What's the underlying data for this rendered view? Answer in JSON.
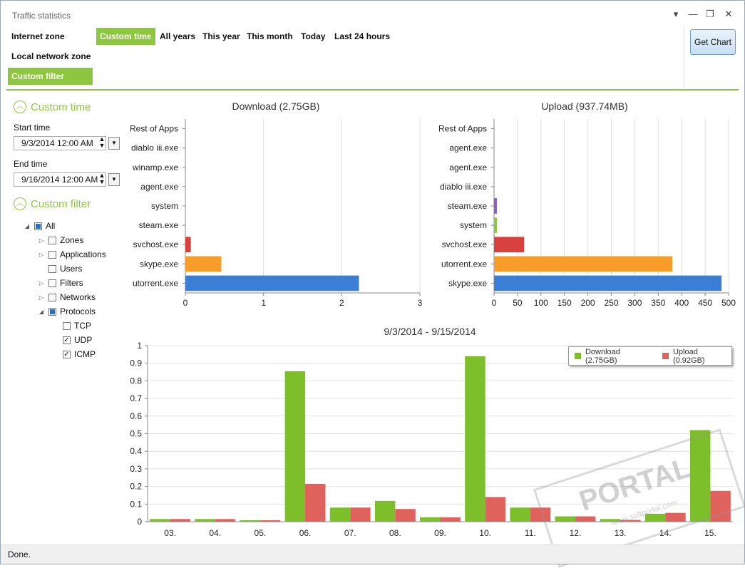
{
  "window": {
    "title": "Traffic statistics"
  },
  "window_buttons": [
    "▾",
    "—",
    "❐",
    "✕"
  ],
  "zones": [
    {
      "label": "Internet zone",
      "active": false
    },
    {
      "label": "Local network zone",
      "active": false
    },
    {
      "label": "Custom filter",
      "active": true
    }
  ],
  "ranges": [
    {
      "label": "Custom time",
      "active": true
    },
    {
      "label": "All years",
      "active": false
    },
    {
      "label": "This year",
      "active": false
    },
    {
      "label": "This month",
      "active": false
    },
    {
      "label": "Today",
      "active": false
    },
    {
      "label": "Last 24 hours",
      "active": false
    }
  ],
  "get_chart_label": "Get Chart",
  "sidebar": {
    "custom_time_heading": "Custom time",
    "start_label": "Start time",
    "start_value": "9/3/2014 12:00 AM",
    "end_label": "End time",
    "end_value": "9/16/2014 12:00 AM",
    "custom_filter_heading": "Custom filter",
    "tree": [
      {
        "label": "All",
        "state": "partial",
        "expander": "◢",
        "level": 0
      },
      {
        "label": "Zones",
        "state": "unchecked",
        "expander": "▷",
        "level": 1
      },
      {
        "label": "Applications",
        "state": "unchecked",
        "expander": "▷",
        "level": 1
      },
      {
        "label": "Users",
        "state": "unchecked",
        "expander": "",
        "level": 1
      },
      {
        "label": "Filters",
        "state": "unchecked",
        "expander": "▷",
        "level": 1
      },
      {
        "label": "Networks",
        "state": "unchecked",
        "expander": "▷",
        "level": 1
      },
      {
        "label": "Protocols",
        "state": "partial",
        "expander": "◢",
        "level": 1
      },
      {
        "label": "TCP",
        "state": "unchecked",
        "expander": "",
        "level": 2
      },
      {
        "label": "UDP",
        "state": "checked",
        "expander": "",
        "level": 2
      },
      {
        "label": "ICMP",
        "state": "checked",
        "expander": "",
        "level": 2
      }
    ]
  },
  "status": "Done.",
  "watermark": {
    "text": "PORTAL",
    "sub": "www.softportal.com",
    "tm": "TM"
  },
  "chart_data": [
    {
      "type": "bar",
      "orientation": "horizontal",
      "title": "Download (2.75GB)",
      "categories": [
        "Rest of Apps",
        "diablo iii.exe",
        "winamp.exe",
        "agent.exe",
        "system",
        "steam.exe",
        "svchost.exe",
        "skype.exe",
        "utorrent.exe"
      ],
      "values": [
        0,
        0,
        0,
        0,
        0,
        0,
        0.07,
        0.46,
        2.22
      ],
      "colors": [
        "#3a7fd5",
        "#3a7fd5",
        "#3a7fd5",
        "#3a7fd5",
        "#3a7fd5",
        "#3a7fd5",
        "#d9413f",
        "#f89c2a",
        "#3a7fd5"
      ],
      "xlim": [
        0,
        3
      ],
      "ticks": [
        "0",
        "1",
        "2",
        "3"
      ]
    },
    {
      "type": "bar",
      "orientation": "horizontal",
      "title": "Upload (937.74MB)",
      "categories": [
        "Rest of Apps",
        "agent.exe",
        "agent.exe",
        "diablo iii.exe",
        "steam.exe",
        "system",
        "svchost.exe",
        "utorrent.exe",
        "skype.exe"
      ],
      "values": [
        0,
        0,
        0,
        0,
        6,
        6,
        64,
        380,
        485
      ],
      "colors": [
        "#3a7fd5",
        "#3a7fd5",
        "#3a7fd5",
        "#3a7fd5",
        "#8a5cc5",
        "#8dc63f",
        "#d9413f",
        "#f89c2a",
        "#3a7fd5"
      ],
      "xlim": [
        0,
        500
      ],
      "ticks": [
        "0",
        "50",
        "100",
        "150",
        "200",
        "250",
        "300",
        "350",
        "400",
        "450",
        "500"
      ]
    },
    {
      "type": "bar",
      "title": "9/3/2014 - 9/15/2014",
      "categories": [
        "03.",
        "04.",
        "05.",
        "06.",
        "07.",
        "08.",
        "09.",
        "10.",
        "11.",
        "12.",
        "13.",
        "14.",
        "15."
      ],
      "series": [
        {
          "name": "Download (2.75GB)",
          "color": "#7cbf2a",
          "values": [
            0.015,
            0.015,
            0.008,
            0.855,
            0.08,
            0.118,
            0.025,
            0.94,
            0.08,
            0.03,
            0.015,
            0.045,
            0.52
          ]
        },
        {
          "name": "Upload (0.92GB)",
          "color": "#e0625d",
          "values": [
            0.015,
            0.015,
            0.008,
            0.215,
            0.08,
            0.072,
            0.025,
            0.14,
            0.08,
            0.03,
            0.01,
            0.05,
            0.175
          ]
        }
      ],
      "ylim": [
        0,
        1
      ],
      "yticks": [
        "0",
        "0.1",
        "0.2",
        "0.3",
        "0.4",
        "0.5",
        "0.6",
        "0.7",
        "0.8",
        "0.9",
        "1"
      ],
      "legend": "top-right"
    }
  ]
}
